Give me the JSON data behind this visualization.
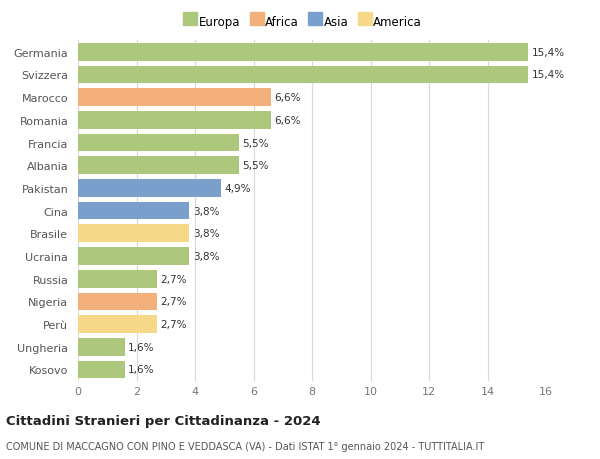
{
  "categories": [
    "Germania",
    "Svizzera",
    "Marocco",
    "Romania",
    "Francia",
    "Albania",
    "Pakistan",
    "Cina",
    "Brasile",
    "Ucraina",
    "Russia",
    "Nigeria",
    "Perù",
    "Ungheria",
    "Kosovo"
  ],
  "values": [
    15.4,
    15.4,
    6.6,
    6.6,
    5.5,
    5.5,
    4.9,
    3.8,
    3.8,
    3.8,
    2.7,
    2.7,
    2.7,
    1.6,
    1.6
  ],
  "labels": [
    "15,4%",
    "15,4%",
    "6,6%",
    "6,6%",
    "5,5%",
    "5,5%",
    "4,9%",
    "3,8%",
    "3,8%",
    "3,8%",
    "2,7%",
    "2,7%",
    "2,7%",
    "1,6%",
    "1,6%"
  ],
  "continents": [
    "Europa",
    "Europa",
    "Africa",
    "Europa",
    "Europa",
    "Europa",
    "Asia",
    "Asia",
    "America",
    "Europa",
    "Europa",
    "Africa",
    "America",
    "Europa",
    "Europa"
  ],
  "colors": {
    "Europa": "#adc87c",
    "Africa": "#f4b07a",
    "Asia": "#7a9fcc",
    "America": "#f5d888"
  },
  "title": "Cittadini Stranieri per Cittadinanza - 2024",
  "subtitle": "COMUNE DI MACCAGNO CON PINO E VEDDASCA (VA) - Dati ISTAT 1° gennaio 2024 - TUTTITALIA.IT",
  "xlim": [
    0,
    16
  ],
  "xticks": [
    0,
    2,
    4,
    6,
    8,
    10,
    12,
    14,
    16
  ],
  "background_color": "#ffffff",
  "grid_color": "#d8d8d8",
  "bar_height": 0.78,
  "label_fontsize": 7.5,
  "ylabel_fontsize": 8,
  "xlabel_fontsize": 8,
  "title_fontsize": 9.5,
  "subtitle_fontsize": 7,
  "legend_fontsize": 8.5
}
